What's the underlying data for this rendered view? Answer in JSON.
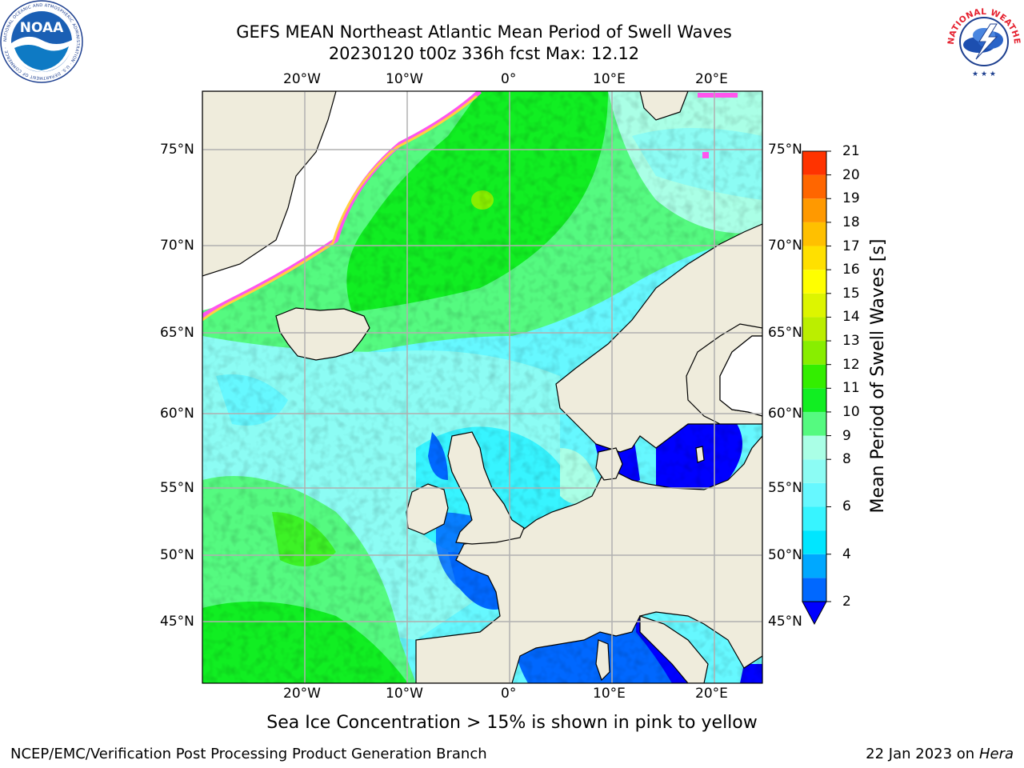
{
  "header": {
    "title_line1": "GEFS MEAN Northeast Atlantic Mean Period of Swell Waves",
    "title_line2": "20230120 t00z 336h fcst   Max: 12.12"
  },
  "logos": {
    "left": {
      "icon": "noaa-logo-icon",
      "text": "NOAA"
    },
    "right": {
      "icon": "nws-logo-icon",
      "text": "NATIONAL WEATHER SERVICE"
    }
  },
  "map": {
    "projection": "mercator",
    "lon_range": [
      -30,
      25
    ],
    "lat_range": [
      41,
      78
    ],
    "lon_ticks": [
      "20°W",
      "10°W",
      "0°",
      "10°E",
      "20°E"
    ],
    "lat_ticks": [
      "75°N",
      "70°N",
      "65°N",
      "60°N",
      "55°N",
      "50°N",
      "45°N"
    ],
    "land_color": "#efecdc",
    "ice_free_color": "#ffffff",
    "grid": true,
    "gridline_color": "#b0b0b0",
    "dominant_ocean_values_s": {
      "north_norwegian_sea": 10.5,
      "central_atlantic": 8.5,
      "southwest_atlantic": 10,
      "north_sea_channel_biscay": 5,
      "baltic_mediterranean": 3
    }
  },
  "colorbar": {
    "label": "Mean Period of Swell Waves [s]",
    "extend": "min",
    "bounds": [
      2,
      3,
      4,
      5,
      6,
      7,
      8,
      9,
      10,
      11,
      12,
      13,
      14,
      15,
      16,
      17,
      18,
      19,
      20,
      21
    ],
    "tick_labels": [
      "21",
      "20",
      "19",
      "18",
      "17",
      "16",
      "15",
      "14",
      "13",
      "12",
      "11",
      "10",
      "9",
      "8",
      "6",
      "4",
      "2"
    ],
    "colors": [
      "#0068ff",
      "#00a8ff",
      "#00e6ff",
      "#37f4ff",
      "#66f8ff",
      "#8cfcf4",
      "#aaffe6",
      "#55fa80",
      "#11ee22",
      "#33ee00",
      "#88ee00",
      "#bbee00",
      "#ddf500",
      "#ffff00",
      "#ffe000",
      "#ffc000",
      "#ff9900",
      "#ff6600",
      "#ff3300",
      "#ff0000"
    ],
    "under_color": "#0000ff"
  },
  "captions": {
    "ice": "Sea Ice Concentration > 15% is shown in pink to yellow"
  },
  "footer": {
    "left": "NCEP/EMC/Verification Post Processing Product Generation Branch",
    "right_prefix": "22 Jan 2023 on ",
    "right_host": "Hera"
  }
}
